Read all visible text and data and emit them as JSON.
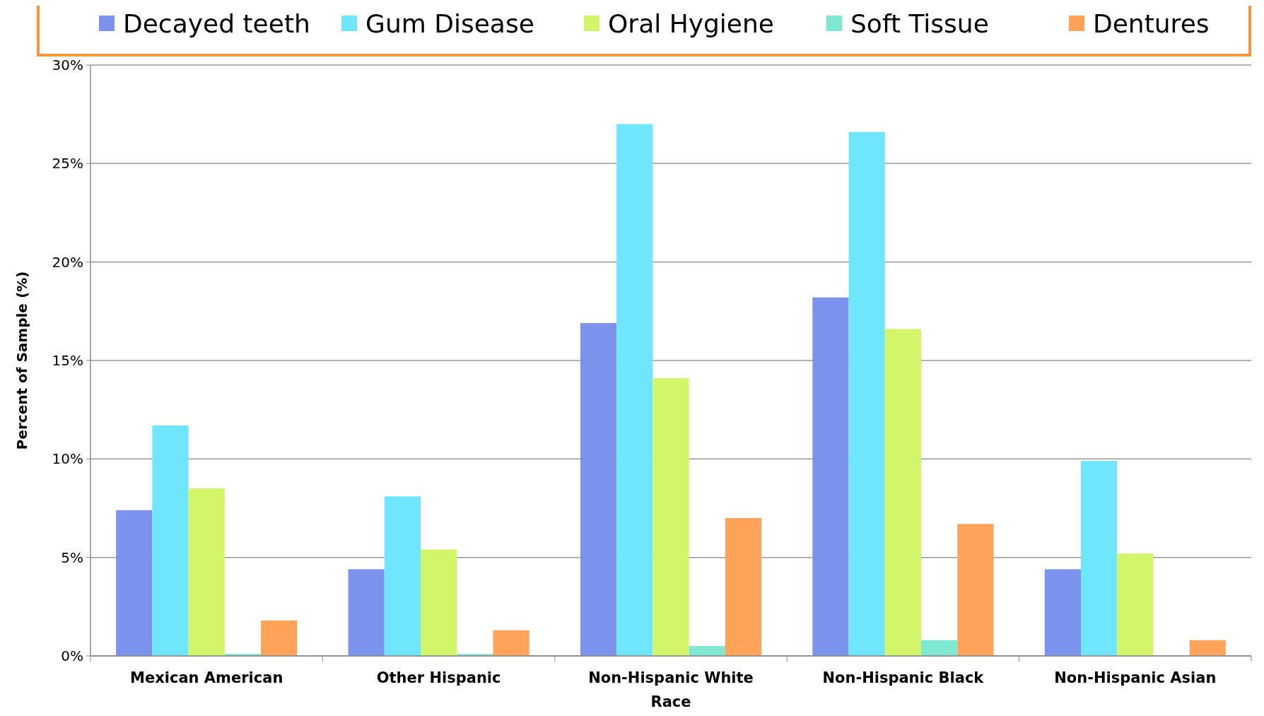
{
  "chart_data": {
    "type": "bar",
    "xlabel": "Race",
    "ylabel": "Percent of Sample (%)",
    "categories": [
      "Mexican American",
      "Other Hispanic",
      "Non-Hispanic White",
      "Non-Hispanic Black",
      "Non-Hispanic Asian"
    ],
    "series": [
      {
        "name": "Decayed teeth",
        "color": "#7b93ec",
        "values": [
          7.4,
          4.4,
          16.9,
          18.2,
          4.4
        ]
      },
      {
        "name": "Gum Disease",
        "color": "#6fe6fb",
        "values": [
          11.7,
          8.1,
          27.0,
          26.6,
          9.9
        ]
      },
      {
        "name": "Oral Hygiene",
        "color": "#d2f56a",
        "values": [
          8.5,
          5.4,
          14.1,
          16.6,
          5.2
        ]
      },
      {
        "name": "Soft Tissue",
        "color": "#7ee8d0",
        "values": [
          0.1,
          0.1,
          0.5,
          0.8,
          0
        ]
      },
      {
        "name": "Dentures",
        "color": "#ffa35a",
        "values": [
          1.8,
          1.3,
          7.0,
          6.7,
          0.8
        ]
      }
    ],
    "ylim": [
      0,
      30
    ],
    "yticks": [
      {
        "value": 0,
        "label": "0%"
      },
      {
        "value": 5,
        "label": "5%"
      },
      {
        "value": 10,
        "label": "10%"
      },
      {
        "value": 15,
        "label": "15%"
      },
      {
        "value": 20,
        "label": "20%"
      },
      {
        "value": 25,
        "label": "25%"
      },
      {
        "value": 30,
        "label": "30%"
      }
    ],
    "grid": "y",
    "legend": "top"
  }
}
